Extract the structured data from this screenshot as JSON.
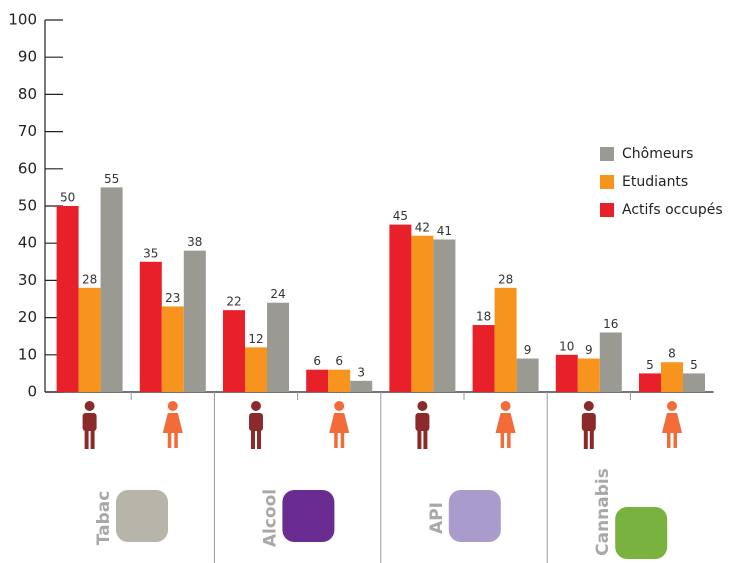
{
  "chart_data": {
    "type": "bar",
    "categories": [
      null,
      null,
      null,
      null,
      null,
      null,
      null,
      null
    ],
    "groups": [
      "Tabac",
      "Alcool",
      "API",
      "Cannabis"
    ],
    "series": [
      {
        "name": "Actifs occupés",
        "color": "#e8202a",
        "values": [
          50,
          35,
          22,
          6,
          45,
          18,
          10,
          5
        ]
      },
      {
        "name": "Etudiants",
        "color": "#f7941d",
        "values": [
          28,
          23,
          12,
          6,
          42,
          28,
          9,
          8
        ]
      },
      {
        "name": "Chômeurs",
        "color": "#9a9a93",
        "values": [
          55,
          38,
          24,
          3,
          41,
          9,
          16,
          5
        ]
      }
    ],
    "ylim": [
      0,
      100
    ],
    "yticks": [
      0,
      10,
      20,
      30,
      40,
      50,
      60,
      70,
      80,
      90,
      100
    ],
    "grid": false,
    "legend": "right"
  }
}
